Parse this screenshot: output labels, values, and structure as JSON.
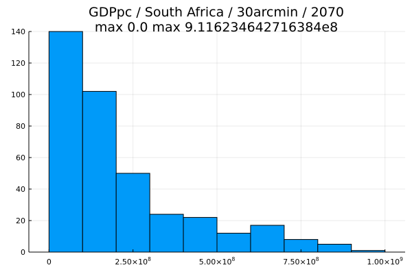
{
  "chart_data": {
    "type": "bar",
    "title_line1": "GDPpc / South Africa / 30arcmin / 2070",
    "title_line2": "max 0.0  max 9.116234642716384e8",
    "bin_edges": [
      0,
      100000000,
      200000000,
      300000000,
      400000000,
      500000000,
      600000000,
      700000000,
      800000000,
      900000000,
      1000000000
    ],
    "values": [
      140,
      102,
      50,
      24,
      22,
      12,
      17,
      8,
      5,
      1
    ],
    "ylim": [
      0,
      140
    ],
    "xlim": [
      -60000000,
      1060000000
    ],
    "y_ticks": [
      "0",
      "20",
      "40",
      "60",
      "80",
      "100",
      "120",
      "140"
    ],
    "x_ticks": [
      {
        "value": 0,
        "mantissa": "0",
        "exponent": ""
      },
      {
        "value": 250000000,
        "mantissa": "2.50×10",
        "exponent": "8"
      },
      {
        "value": 500000000,
        "mantissa": "5.00×10",
        "exponent": "8"
      },
      {
        "value": 750000000,
        "mantissa": "7.50×10",
        "exponent": "8"
      },
      {
        "value": 1000000000,
        "mantissa": "1.00×10",
        "exponent": "9"
      }
    ],
    "grid": true,
    "legend": "none",
    "colors": {
      "bar": "#009af9",
      "edge": "#000000"
    }
  }
}
